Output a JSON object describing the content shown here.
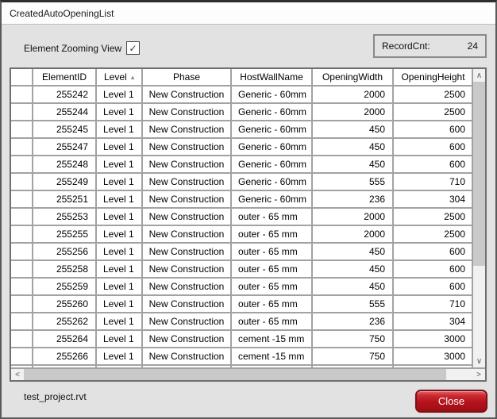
{
  "window": {
    "title": "CreatedAutoOpeningList"
  },
  "toolbar": {
    "zoom_label": "Element Zooming View",
    "zoom_checked": true,
    "record_count_label": "RecordCnt:",
    "record_count": 24
  },
  "grid": {
    "columns": [
      {
        "label": "",
        "align": "center"
      },
      {
        "label": "ElementID",
        "align": "right"
      },
      {
        "label": "Level",
        "align": "left",
        "sorted": "asc"
      },
      {
        "label": "Phase",
        "align": "center"
      },
      {
        "label": "HostWallName",
        "align": "left"
      },
      {
        "label": "OpeningWidth",
        "align": "right"
      },
      {
        "label": "OpeningHeight",
        "align": "right"
      }
    ],
    "rows": [
      [
        255242,
        "Level 1",
        "New Construction",
        "Generic - 60mm",
        2000,
        2500
      ],
      [
        255244,
        "Level 1",
        "New Construction",
        "Generic - 60mm",
        2000,
        2500
      ],
      [
        255245,
        "Level 1",
        "New Construction",
        "Generic - 60mm",
        450,
        600
      ],
      [
        255247,
        "Level 1",
        "New Construction",
        "Generic - 60mm",
        450,
        600
      ],
      [
        255248,
        "Level 1",
        "New Construction",
        "Generic - 60mm",
        450,
        600
      ],
      [
        255249,
        "Level 1",
        "New Construction",
        "Generic - 60mm",
        555,
        710
      ],
      [
        255251,
        "Level 1",
        "New Construction",
        "Generic - 60mm",
        236,
        304
      ],
      [
        255253,
        "Level 1",
        "New Construction",
        "outer - 65 mm",
        2000,
        2500
      ],
      [
        255255,
        "Level 1",
        "New Construction",
        "outer - 65 mm",
        2000,
        2500
      ],
      [
        255256,
        "Level 1",
        "New Construction",
        "outer - 65 mm",
        450,
        600
      ],
      [
        255258,
        "Level 1",
        "New Construction",
        "outer - 65 mm",
        450,
        600
      ],
      [
        255259,
        "Level 1",
        "New Construction",
        "outer - 65 mm",
        450,
        600
      ],
      [
        255260,
        "Level 1",
        "New Construction",
        "outer - 65 mm",
        555,
        710
      ],
      [
        255262,
        "Level 1",
        "New Construction",
        "outer - 65 mm",
        236,
        304
      ],
      [
        255264,
        "Level 1",
        "New Construction",
        "cement -15 mm",
        750,
        3000
      ],
      [
        255266,
        "Level 1",
        "New Construction",
        "cement -15 mm",
        750,
        3000
      ]
    ]
  },
  "footer": {
    "file_name": "test_project.rvt",
    "close_label": "Close"
  },
  "icons": {
    "check_glyph": "✓",
    "sort_asc_glyph": "▲",
    "scroll_up_glyph": "∧",
    "scroll_down_glyph": "∨",
    "scroll_left_glyph": "<",
    "scroll_right_glyph": ">"
  },
  "colors": {
    "close_button_red": "#b5121b",
    "dialog_background": "#e2e2e2",
    "gridline": "#a2a2a2"
  }
}
